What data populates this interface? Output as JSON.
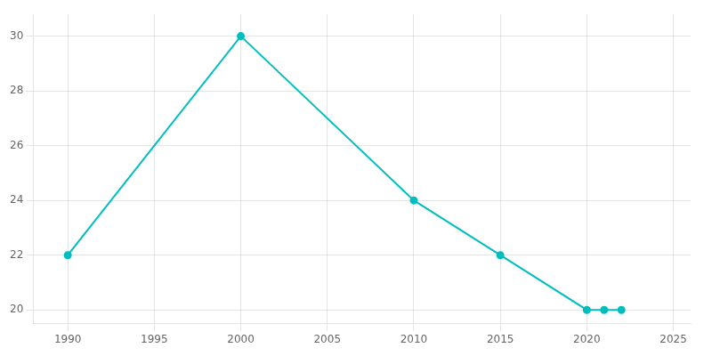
{
  "chart_data": {
    "type": "line",
    "x": [
      1990,
      2000,
      2010,
      2015,
      2020,
      2021,
      2022
    ],
    "values": [
      22,
      30,
      24,
      22,
      20,
      20,
      20
    ],
    "color": "#00BEBE",
    "marker": "circle",
    "xlim": [
      1988,
      2026
    ],
    "xticks": [
      1990,
      1995,
      2000,
      2005,
      2010,
      2015,
      2020,
      2025
    ],
    "ylim": [
      19.5,
      30.8
    ],
    "yticks": [
      20,
      22,
      24,
      26,
      28,
      30
    ],
    "grid": true
  }
}
